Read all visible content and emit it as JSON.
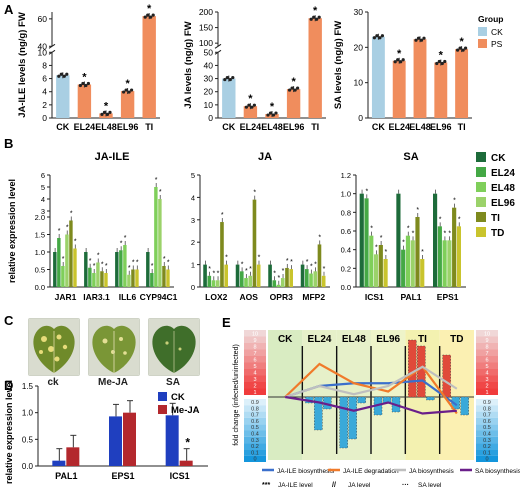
{
  "colors": {
    "ck": "#a9cfe3",
    "ps": "#f08d5d",
    "dark_green": "#1d6b3a",
    "green": "#44a845",
    "light_green": "#7fcf5a",
    "olive": "#7e8a1e",
    "khaki": "#c9c42d",
    "d_ck": "#1f3fbf",
    "d_meja": "#b3282d",
    "e_blue": "#3a6fcc",
    "e_orange": "#f07a2a",
    "e_grey": "#bfbfbf",
    "e_purple": "#6a1f8a"
  },
  "chart_data": [
    {
      "panel": "A",
      "type": "bar",
      "ylabel": "JA-ILE levels (ng/g) FW",
      "categories": [
        "CK",
        "EL24",
        "EL48",
        "EL96",
        "TI"
      ],
      "values": [
        6.5,
        5.1,
        0.7,
        4.1,
        62
      ],
      "sig": [
        "",
        "*",
        "*",
        "*",
        "*"
      ],
      "ylim_break": [
        [
          0,
          10
        ],
        [
          40,
          65
        ]
      ],
      "ticks": [
        "0",
        "2",
        "4",
        "6",
        "8",
        "10",
        "40",
        "60"
      ]
    },
    {
      "panel": "A",
      "type": "bar",
      "ylabel": "JA levels (ng/g) FW",
      "categories": [
        "CK",
        "EL24",
        "EL48",
        "EL96",
        "TI"
      ],
      "values": [
        30,
        9,
        3,
        22,
        180
      ],
      "sig": [
        "",
        "*",
        "*",
        "*",
        "*"
      ],
      "ylim_break": [
        [
          0,
          50
        ],
        [
          90,
          200
        ]
      ],
      "ticks": [
        "0",
        "10",
        "20",
        "30",
        "40",
        "50",
        "100",
        "150",
        "200"
      ]
    },
    {
      "panel": "A",
      "type": "bar",
      "ylabel": "SA levels (ng/g) FW",
      "categories": [
        "CK",
        "EL24",
        "EL48",
        "EL96",
        "TI"
      ],
      "values": [
        23,
        16.2,
        22.3,
        15.7,
        19.5
      ],
      "sig": [
        "",
        "*",
        "",
        "*",
        "*"
      ],
      "ylim": [
        0,
        30
      ],
      "ticks": [
        "0",
        "10",
        "20",
        "30"
      ],
      "legend_title": "Group",
      "legend": [
        "CK",
        "PS"
      ]
    },
    {
      "panel": "B",
      "type": "bar",
      "ylabel": "relative expression level",
      "series_names": [
        "CK",
        "EL24",
        "EL48",
        "EL96",
        "TI",
        "TD"
      ],
      "groups": [
        {
          "title": "JA-ILE",
          "genes": [
            {
              "name": "JAR1",
              "values": [
                1,
                1.4,
                0.6,
                1.5,
                1.9,
                1.1
              ]
            },
            {
              "name": "IAR3.1",
              "values": [
                1,
                0.55,
                0.4,
                0.7,
                0.45,
                0.4
              ]
            },
            {
              "name": "ILL6",
              "values": [
                1,
                1.05,
                1.2,
                0.35,
                0.5,
                0.5
              ]
            },
            {
              "name": "CYP94C1",
              "values": [
                1,
                0.4,
                5.0,
                4.0,
                0.6,
                0.5
              ]
            }
          ]
        },
        {
          "title": "JA",
          "genes": [
            {
              "name": "LOX2",
              "values": [
                1,
                0.5,
                0.3,
                0.3,
                2.9,
                1.0
              ]
            },
            {
              "name": "AOS",
              "values": [
                1,
                0.7,
                0.4,
                0.5,
                3.9,
                1.0
              ]
            },
            {
              "name": "OPR3",
              "values": [
                1,
                0.3,
                0.1,
                0.4,
                0.85,
                0.8
              ]
            },
            {
              "name": "MFP2",
              "values": [
                1,
                0.8,
                0.6,
                0.7,
                1.9,
                0.5
              ]
            }
          ]
        },
        {
          "title": "SA",
          "genes": [
            {
              "name": "ICS1",
              "values": [
                1,
                0.95,
                0.55,
                0.35,
                0.45,
                0.3
              ]
            },
            {
              "name": "PAL1",
              "values": [
                1,
                0.4,
                0.55,
                0.5,
                0.75,
                0.3
              ]
            },
            {
              "name": "EPS1",
              "values": [
                1,
                0.65,
                0.5,
                0.5,
                0.85,
                0.65
              ]
            }
          ]
        }
      ],
      "ticks_left": [
        "0.0",
        "0.5",
        "1.0",
        "1.5",
        "2.0",
        "3",
        "4",
        "5",
        "6"
      ],
      "ticks_mid": [
        "0",
        "1",
        "2",
        "3",
        "4",
        "5"
      ],
      "ticks_right": [
        "0.0",
        "0.2",
        "0.4",
        "0.6",
        "0.8",
        "1.0",
        "1.2"
      ]
    },
    {
      "panel": "D",
      "type": "bar",
      "ylabel": "relative expression level",
      "categories": [
        "PAL1",
        "EPS1",
        "ICS1"
      ],
      "series": [
        {
          "name": "CK",
          "values": [
            0.1,
            0.93,
            0.95
          ]
        },
        {
          "name": "Me-JA",
          "values": [
            0.35,
            1.0,
            0.1
          ]
        }
      ],
      "sig": [
        "",
        "",
        "*"
      ],
      "ylim": [
        0,
        1.5
      ],
      "ticks": [
        "0.0",
        "0.5",
        "1.0",
        "1.5"
      ]
    }
  ],
  "panel_letters": [
    "A",
    "B",
    "C",
    "D",
    "E"
  ],
  "panel_c": {
    "captions": [
      "ck",
      "Me-JA",
      "SA"
    ]
  },
  "panel_e": {
    "stages": [
      "CK",
      "EL24",
      "EL48",
      "EL96",
      "TI",
      "TD"
    ],
    "ylabel": "fold change (infected/uninfected)",
    "scale_top": [
      "10",
      "9",
      "8",
      "7",
      "6",
      "5",
      "4",
      "3",
      "2",
      "1"
    ],
    "scale_bottom": [
      "0.9",
      "0.8",
      "0.7",
      "0.6",
      "0.5",
      "0.4",
      "0.3",
      "0.2",
      "0.1",
      "0"
    ],
    "legend_lines": [
      "JA-ILE biosynthesis",
      "JA-ILE degradation",
      "JA biosynthesis",
      "SA biosynthesis"
    ],
    "legend_levels": [
      "JA-ILE level",
      "JA level",
      "SA level"
    ]
  }
}
